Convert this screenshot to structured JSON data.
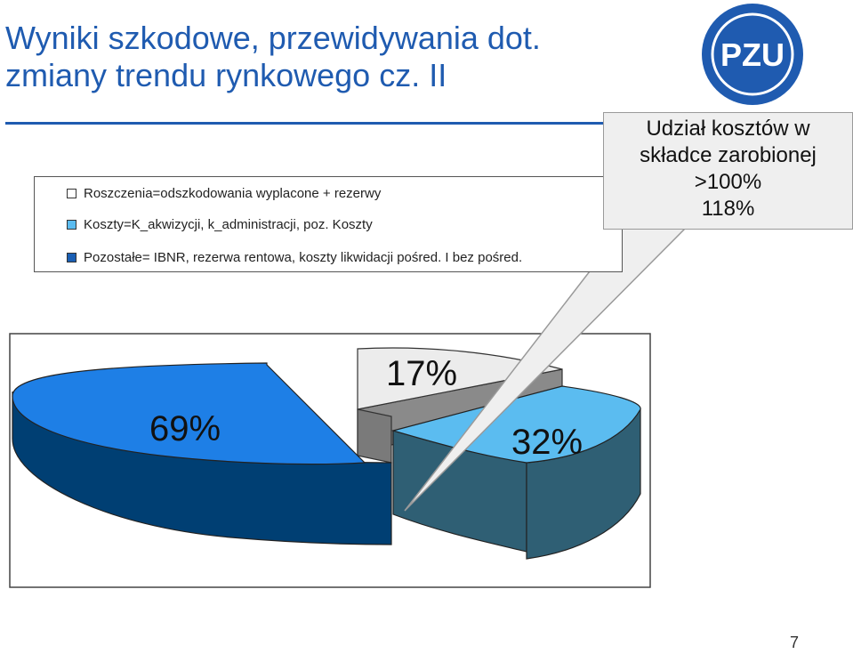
{
  "slide": {
    "title_line1": "Wyniki szkodowe, przewidywania dot.",
    "title_line2": "zmiany trendu rynkowego cz. II",
    "page_number": "7",
    "logo_text": "PZU"
  },
  "legend": {
    "items": [
      {
        "label": "Roszczenia=odszkodowania wyplacone + rezerwy",
        "color": "#ffffff"
      },
      {
        "label": "Koszty=K_akwizycji, k_administracji, poz. Koszty",
        "color": "#5bbcf0"
      },
      {
        "label": "Pozostałe= IBNR, rezerwa rentowa, koszty likwidacji pośred. I bez pośred.",
        "color": "#1a5fb4"
      }
    ]
  },
  "callout": {
    "line1": "Udział kosztów w",
    "line2": "składce zarobionej",
    "line3": ">100%",
    "line4": "118%"
  },
  "chart_data": {
    "type": "pie",
    "style": "3d-exploded",
    "slices": [
      {
        "label": "69%",
        "value": 69,
        "color": "#1e7fe6"
      },
      {
        "label": "32%",
        "value": 32,
        "color": "#5bbcf0"
      },
      {
        "label": "17%",
        "value": 17,
        "color": "#ececec"
      }
    ]
  }
}
